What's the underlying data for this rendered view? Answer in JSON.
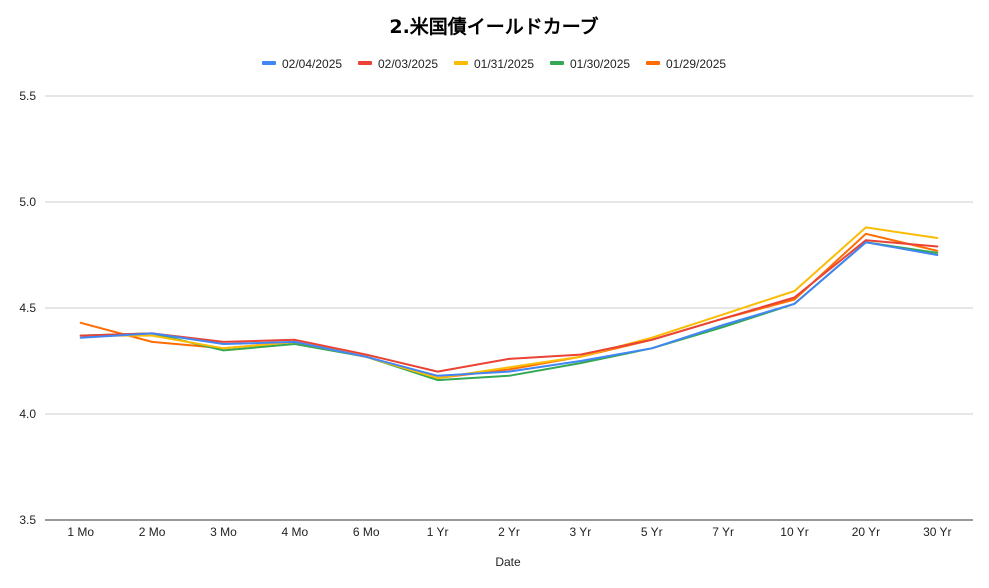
{
  "chart_data": {
    "type": "line",
    "title": "2.米国債イールドカーブ",
    "xlabel": "Date",
    "ylabel": "",
    "ylim": [
      3.5,
      5.5
    ],
    "yticks": [
      "3.5",
      "4.0",
      "4.5",
      "5.0",
      "5.5"
    ],
    "grid": true,
    "legend_position": "top-center",
    "categories": [
      "1 Mo",
      "2 Mo",
      "3 Mo",
      "4 Mo",
      "6 Mo",
      "1 Yr",
      "2 Yr",
      "3 Yr",
      "5 Yr",
      "7 Yr",
      "10 Yr",
      "20 Yr",
      "30 Yr"
    ],
    "series": [
      {
        "name": "02/04/2025",
        "color": "#4285F4",
        "values": [
          4.36,
          4.38,
          4.33,
          4.34,
          4.27,
          4.18,
          4.2,
          4.25,
          4.31,
          4.42,
          4.52,
          4.81,
          4.75
        ]
      },
      {
        "name": "02/03/2025",
        "color": "#EA4335",
        "values": [
          4.37,
          4.38,
          4.34,
          4.35,
          4.28,
          4.2,
          4.26,
          4.28,
          4.35,
          4.45,
          4.55,
          4.82,
          4.79
        ]
      },
      {
        "name": "01/31/2025",
        "color": "#FBBC04",
        "values": [
          4.37,
          4.37,
          4.31,
          4.34,
          4.27,
          4.17,
          4.22,
          4.27,
          4.36,
          4.47,
          4.58,
          4.88,
          4.83
        ]
      },
      {
        "name": "01/30/2025",
        "color": "#34A853",
        "values": [
          4.37,
          4.38,
          4.3,
          4.33,
          4.27,
          4.16,
          4.18,
          4.24,
          4.31,
          4.41,
          4.52,
          4.81,
          4.76
        ]
      },
      {
        "name": "01/29/2025",
        "color": "#FF6D01",
        "values": [
          4.43,
          4.34,
          4.31,
          4.34,
          4.27,
          4.17,
          4.21,
          4.27,
          4.35,
          4.45,
          4.54,
          4.85,
          4.77
        ]
      }
    ]
  }
}
